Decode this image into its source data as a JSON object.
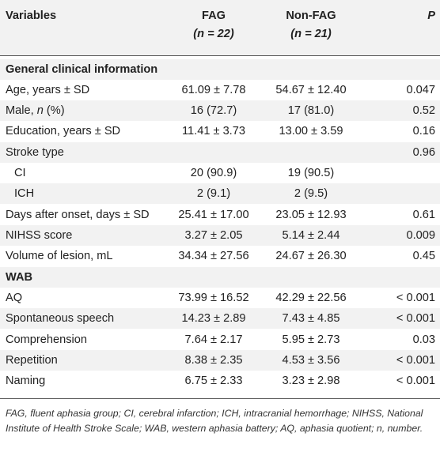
{
  "header": {
    "variables": "Variables",
    "fag": "FAG",
    "fag_n": "(n = 22)",
    "nonfag": "Non-FAG",
    "nonfag_n": "(n = 21)",
    "p": "P"
  },
  "sections": {
    "general": "General clinical information",
    "wab": "WAB"
  },
  "rows": [
    {
      "label": "Age, years ± SD",
      "fag": "61.09 ± 7.78",
      "nonfag": "54.67 ± 12.40",
      "p": "0.047"
    },
    {
      "label": "Male, n (%)",
      "fag": "16 (72.7)",
      "nonfag": "17 (81.0)",
      "p": "0.52"
    },
    {
      "label": "Education, years ± SD",
      "fag": "11.41 ± 3.73",
      "nonfag": "13.00 ± 3.59",
      "p": "0.16"
    },
    {
      "label": "Stroke type",
      "fag": "",
      "nonfag": "",
      "p": "0.96"
    },
    {
      "label": "CI",
      "fag": "20 (90.9)",
      "nonfag": "19 (90.5)",
      "p": ""
    },
    {
      "label": "ICH",
      "fag": "2 (9.1)",
      "nonfag": "2 (9.5)",
      "p": ""
    },
    {
      "label": "Days after onset, days ± SD",
      "fag": "25.41 ± 17.00",
      "nonfag": "23.05 ± 12.93",
      "p": "0.61"
    },
    {
      "label": "NIHSS score",
      "fag": "3.27 ± 2.05",
      "nonfag": "5.14 ± 2.44",
      "p": "0.009"
    },
    {
      "label": "Volume of lesion, mL",
      "fag": "34.34 ± 27.56",
      "nonfag": "24.67 ± 26.30",
      "p": "0.45"
    }
  ],
  "wab_rows": [
    {
      "label": "AQ",
      "fag": "73.99 ± 16.52",
      "nonfag": "42.29 ± 22.56",
      "p": "< 0.001"
    },
    {
      "label": "Spontaneous speech",
      "fag": "14.23 ± 2.89",
      "nonfag": "7.43 ± 4.85",
      "p": "< 0.001"
    },
    {
      "label": "Comprehension",
      "fag": "7.64 ± 2.17",
      "nonfag": "5.95 ± 2.73",
      "p": "0.03"
    },
    {
      "label": "Repetition",
      "fag": "8.38 ± 2.35",
      "nonfag": "4.53 ± 3.56",
      "p": "< 0.001"
    },
    {
      "label": "Naming",
      "fag": "6.75 ± 2.33",
      "nonfag": "3.23 ± 2.98",
      "p": "< 0.001"
    }
  ],
  "footnote": "FAG, fluent aphasia group; CI, cerebral infarction; ICH, intracranial hemorrhage; NIHSS, National Institute of Health Stroke Scale; WAB, western aphasia battery; AQ, aphasia quotient; n, number."
}
